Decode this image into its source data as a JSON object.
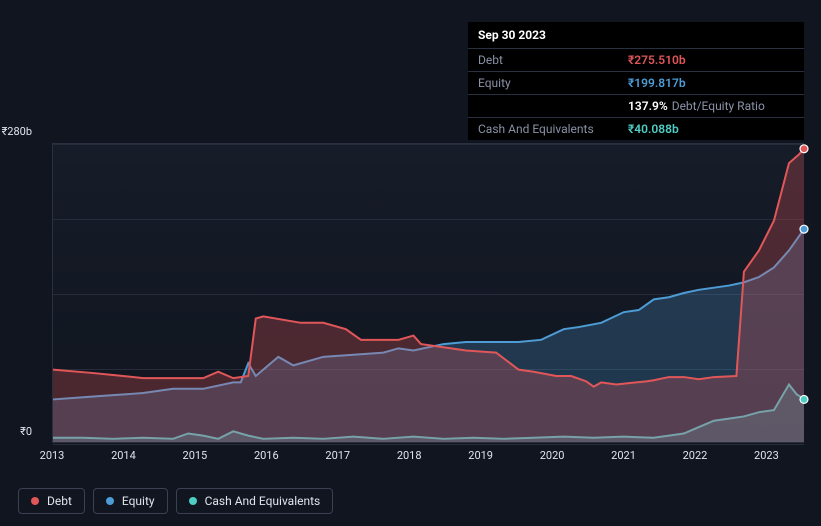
{
  "tooltip": {
    "date": "Sep 30 2023",
    "rows": [
      {
        "label": "Debt",
        "value": "₹275.510b",
        "color": "red"
      },
      {
        "label": "Equity",
        "value": "₹199.817b",
        "color": "blue"
      },
      {
        "label": "",
        "value": "137.9%",
        "suffix": "Debt/Equity Ratio",
        "color": "white"
      },
      {
        "label": "Cash And Equivalents",
        "value": "₹40.088b",
        "color": "teal"
      }
    ]
  },
  "chart": {
    "type": "area",
    "ylim": [
      0,
      280
    ],
    "y_top_label": "₹280b",
    "y_bottom_label": "₹0",
    "x_categories": [
      "2013",
      "2014",
      "2015",
      "2016",
      "2017",
      "2018",
      "2019",
      "2020",
      "2021",
      "2022",
      "2023"
    ],
    "x_positions_pct": [
      0,
      9.5,
      19,
      28.5,
      38,
      47.5,
      57,
      66.5,
      76,
      85.5,
      95
    ],
    "grid_y_positions_pct": [
      0,
      25,
      50,
      75,
      100
    ],
    "background_color": "#10151f",
    "grid_color": "#262c3a",
    "plot_bg": "#161c28",
    "series": [
      {
        "name": "Debt",
        "color_line": "#e15759",
        "color_fill": "rgba(225,87,89,0.28)",
        "line_width": 2,
        "data": [
          [
            0,
            68
          ],
          [
            5,
            65
          ],
          [
            8,
            63
          ],
          [
            12,
            60
          ],
          [
            20,
            60
          ],
          [
            22,
            66
          ],
          [
            24,
            60
          ],
          [
            26,
            62
          ],
          [
            27,
            116
          ],
          [
            28,
            118
          ],
          [
            33,
            112
          ],
          [
            36,
            112
          ],
          [
            39,
            106
          ],
          [
            41,
            96
          ],
          [
            46,
            96
          ],
          [
            48,
            100
          ],
          [
            49,
            92
          ],
          [
            52,
            89
          ],
          [
            55,
            86
          ],
          [
            59,
            84
          ],
          [
            62,
            68
          ],
          [
            64,
            66
          ],
          [
            67,
            62
          ],
          [
            69,
            62
          ],
          [
            71,
            57
          ],
          [
            72,
            52
          ],
          [
            73,
            56
          ],
          [
            75,
            54
          ],
          [
            79,
            57
          ],
          [
            80,
            58
          ],
          [
            82,
            61
          ],
          [
            84,
            61
          ],
          [
            86,
            59
          ],
          [
            88,
            61
          ],
          [
            91,
            62
          ],
          [
            92,
            160
          ],
          [
            94,
            180
          ],
          [
            96,
            208
          ],
          [
            98,
            262
          ],
          [
            99.3,
            270
          ],
          [
            100,
            275.5
          ]
        ]
      },
      {
        "name": "Equity",
        "color_line": "#4e9cd6",
        "color_fill": "rgba(78,156,214,0.25)",
        "line_width": 2,
        "data": [
          [
            0,
            40
          ],
          [
            4,
            42
          ],
          [
            8,
            44
          ],
          [
            12,
            46
          ],
          [
            16,
            50
          ],
          [
            20,
            50
          ],
          [
            24,
            56
          ],
          [
            25,
            56
          ],
          [
            26,
            74
          ],
          [
            27,
            62
          ],
          [
            28,
            68
          ],
          [
            30,
            80
          ],
          [
            32,
            72
          ],
          [
            36,
            80
          ],
          [
            40,
            82
          ],
          [
            44,
            84
          ],
          [
            46,
            88
          ],
          [
            48,
            86
          ],
          [
            52,
            92
          ],
          [
            55,
            94
          ],
          [
            58,
            94
          ],
          [
            62,
            94
          ],
          [
            65,
            96
          ],
          [
            68,
            106
          ],
          [
            70,
            108
          ],
          [
            73,
            112
          ],
          [
            76,
            122
          ],
          [
            78,
            124
          ],
          [
            80,
            134
          ],
          [
            82,
            136
          ],
          [
            84,
            140
          ],
          [
            86,
            143
          ],
          [
            88,
            145
          ],
          [
            90,
            147
          ],
          [
            92,
            150
          ],
          [
            94,
            155
          ],
          [
            96,
            164
          ],
          [
            98,
            180
          ],
          [
            99,
            190
          ],
          [
            100,
            200
          ]
        ]
      },
      {
        "name": "Cash And Equivalents",
        "color_line": "#4ecdc4",
        "color_fill": "rgba(78,205,196,0.25)",
        "line_width": 2,
        "data": [
          [
            0,
            4
          ],
          [
            4,
            4
          ],
          [
            8,
            3
          ],
          [
            12,
            4
          ],
          [
            16,
            3
          ],
          [
            18,
            8
          ],
          [
            20,
            6
          ],
          [
            22,
            3
          ],
          [
            24,
            10
          ],
          [
            26,
            6
          ],
          [
            28,
            3
          ],
          [
            32,
            4
          ],
          [
            36,
            3
          ],
          [
            40,
            5
          ],
          [
            44,
            3
          ],
          [
            48,
            5
          ],
          [
            52,
            3
          ],
          [
            56,
            4
          ],
          [
            60,
            3
          ],
          [
            64,
            4
          ],
          [
            68,
            5
          ],
          [
            72,
            4
          ],
          [
            76,
            5
          ],
          [
            80,
            4
          ],
          [
            82,
            6
          ],
          [
            84,
            8
          ],
          [
            86,
            14
          ],
          [
            88,
            20
          ],
          [
            90,
            22
          ],
          [
            92,
            24
          ],
          [
            94,
            28
          ],
          [
            96,
            30
          ],
          [
            98,
            54
          ],
          [
            99,
            45
          ],
          [
            100,
            40
          ]
        ]
      }
    ],
    "legend": [
      {
        "label": "Debt",
        "color": "#e15759"
      },
      {
        "label": "Equity",
        "color": "#4e9cd6"
      },
      {
        "label": "Cash And Equivalents",
        "color": "#4ecdc4"
      }
    ]
  }
}
